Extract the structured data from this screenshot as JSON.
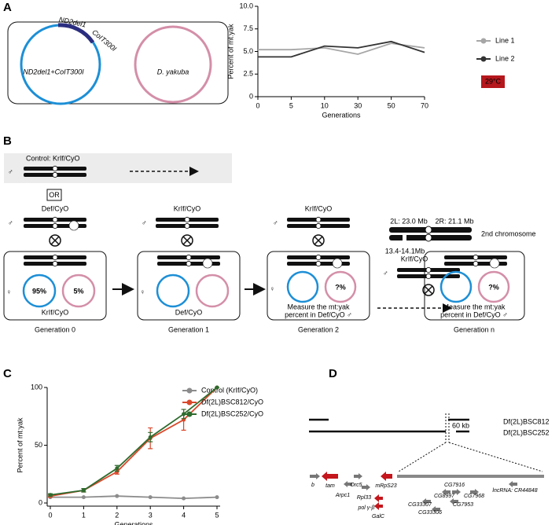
{
  "panel_labels": {
    "a": "A",
    "b": "B",
    "c": "C",
    "d": "D"
  },
  "chart_data": [
    {
      "type": "line",
      "categories": [
        "0",
        "5",
        "10",
        "30",
        "50",
        "70"
      ],
      "x_label": "Generations",
      "y_label": "Percent of mt:yak",
      "ylim": [
        0,
        10
      ],
      "yticks": [
        0,
        2.5,
        {
          "value": 5,
          "label": "5.0"
        },
        7.5,
        {
          "value": 10,
          "label": "10.0"
        }
      ],
      "series": [
        {
          "name": "Line 1",
          "color": "#a6a6a6",
          "values": [
            5.2,
            5.2,
            5.4,
            4.7,
            5.9,
            5.4
          ]
        },
        {
          "name": "Line 2",
          "color": "#333333",
          "values": [
            4.4,
            4.4,
            5.6,
            5.4,
            6.1,
            4.9
          ]
        }
      ],
      "legend": "right",
      "annotation": "29°C",
      "annotation_color": "#b5171c"
    },
    {
      "type": "line",
      "x": [
        0,
        1,
        2,
        3,
        4,
        5
      ],
      "xlim": [
        0,
        5
      ],
      "xticks": [
        0,
        1,
        2,
        3,
        4,
        5
      ],
      "x_label": "Generations",
      "y_label": "Percent of mt:yak",
      "ylim": [
        0,
        100
      ],
      "yticks": [
        0,
        50,
        100
      ],
      "series": [
        {
          "name": "Control (KrIf/CyO)",
          "color": "#8c8c8c",
          "values": [
            5,
            5,
            6,
            5,
            4,
            5
          ]
        },
        {
          "name": "Df(2L)BSC812/CyO",
          "color": "#d9482b",
          "values": [
            6,
            11,
            27,
            56,
            72,
            100
          ],
          "errors": [
            1,
            1.5,
            2,
            9,
            9,
            0
          ]
        },
        {
          "name": "Df(2L)BSC252/CyO",
          "color": "#2e6b2e",
          "values": [
            7,
            11,
            30,
            57,
            77,
            100
          ],
          "errors": [
            1,
            1.5,
            2.5,
            4,
            4,
            0
          ]
        }
      ],
      "legend": "upper right"
    }
  ],
  "panel_a": {
    "mito_left": "ND2del1+CoIT300I",
    "mito_right": "D. yakuba",
    "gene_1": "ND2del1",
    "gene_2": "CoIT300I"
  },
  "panel_b": {
    "control": "Control: KrIf/CyO",
    "or": "OR",
    "male": "♂",
    "female": "♀",
    "cross_genotype": "KrIf/CyO",
    "def_genotype": "Def/CyO",
    "generations": [
      {
        "label": "Generation 0",
        "genotype": "KrIf/CyO",
        "blue": "95%",
        "pink": "5%"
      },
      {
        "label": "Generation 1",
        "genotype": "Def/CyO"
      },
      {
        "label": "Generation 2",
        "pink": "?%",
        "note": [
          "Measure the mt:yak",
          "percent in Def/CyO ♂"
        ]
      },
      {
        "label": "Generation n",
        "pink": "?%",
        "note": [
          "Measure the mt:yak",
          "percent in Def/CyO ♂"
        ]
      }
    ]
  },
  "panel_d": {
    "chr_2l": "2L: 23.0 Mb",
    "chr_2r": "2R: 21.1 Mb",
    "chr_name": "2nd chromosome",
    "region": "13.4-14.1Mb",
    "deficiencies": [
      "Df(2L)BSC812",
      "Df(2L)BSC252"
    ],
    "scale": "60 kb",
    "genes": [
      "b",
      "tam",
      "Arpc1",
      "Orc5",
      "Rpl33",
      "mRpS23",
      "pol γ-β",
      "GalC",
      "CG7916",
      "CG8997",
      "CG7968",
      "CG7953",
      "CG33307",
      "CG33306",
      "lncRNA: CR44848"
    ]
  }
}
